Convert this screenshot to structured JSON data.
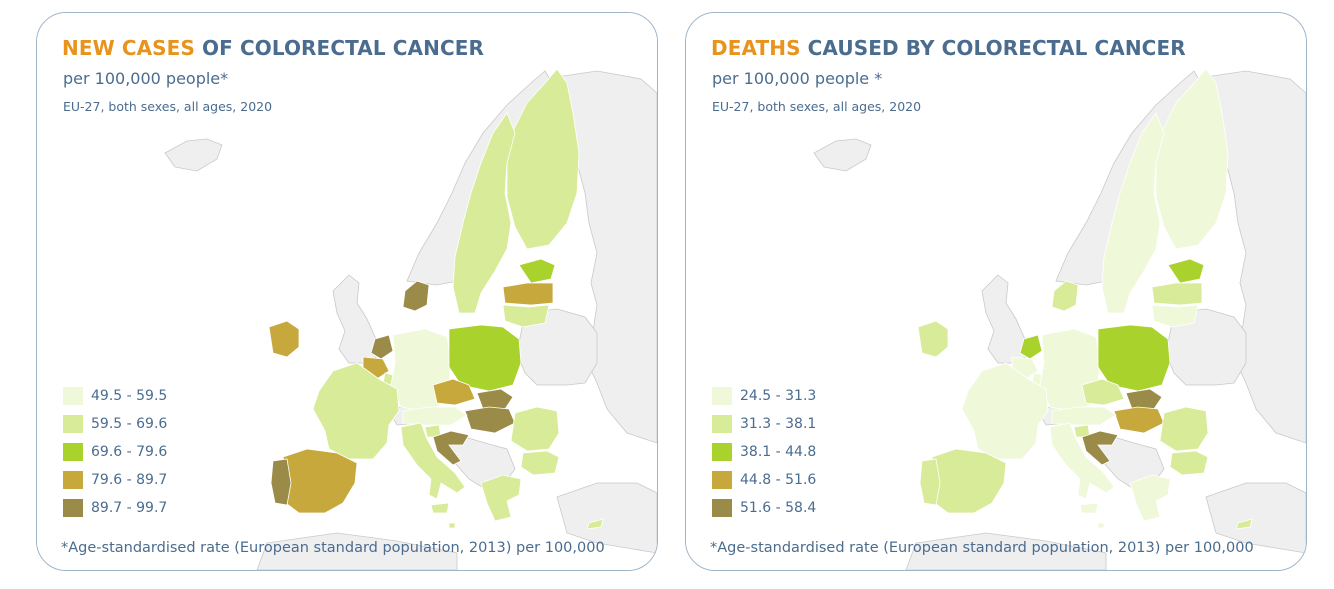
{
  "colors": {
    "non_eu": "#efeff0",
    "non_eu_stroke": "#c9c9cc",
    "classes": [
      "#eff8d9",
      "#d7eb98",
      "#a9d22c",
      "#c7a83d",
      "#9a8b48"
    ],
    "title_highlight": "#e8931c",
    "title_text": "#4a6c8f",
    "border": "#9db3c7"
  },
  "panels": [
    {
      "title_highlight": "NEW CASES",
      "title_rest": " OF COLORECTAL CANCER",
      "subtitle": "per 100,000 people*",
      "scope": "EU-27, both sexes, all ages, 2020",
      "legend": [
        {
          "label": "49.5 - 59.5",
          "class": 0
        },
        {
          "label": "59.5 - 69.6",
          "class": 1
        },
        {
          "label": "69.6 - 79.6",
          "class": 2
        },
        {
          "label": "79.6 - 89.7",
          "class": 3
        },
        {
          "label": "89.7 - 99.7",
          "class": 4
        }
      ],
      "countries": {
        "finland": 1,
        "sweden": 1,
        "estonia": 2,
        "latvia": 3,
        "lithuania": 1,
        "denmark": 4,
        "ireland": 3,
        "netherlands": 4,
        "belgium": 3,
        "luxembourg": 1,
        "germany": 0,
        "poland": 2,
        "czechia": 3,
        "slovakia": 4,
        "hungary": 4,
        "austria": 0,
        "slovenia": 1,
        "croatia": 4,
        "france": 1,
        "spain": 3,
        "portugal": 4,
        "italy": 1,
        "romania": 1,
        "bulgaria": 1,
        "greece": 1,
        "malta": 1,
        "cyprus": 1
      },
      "footnote": "*Age-standardised rate (European standard population, 2013) per 100,000"
    },
    {
      "title_highlight": "DEATHS",
      "title_rest": " CAUSED BY COLORECTAL CANCER",
      "subtitle": "per 100,000 people *",
      "scope": "EU-27, both sexes, all ages, 2020",
      "legend": [
        {
          "label": "24.5 - 31.3",
          "class": 0
        },
        {
          "label": "31.3 - 38.1",
          "class": 1
        },
        {
          "label": "38.1 - 44.8",
          "class": 2
        },
        {
          "label": "44.8 - 51.6",
          "class": 3
        },
        {
          "label": "51.6 - 58.4",
          "class": 4
        }
      ],
      "countries": {
        "finland": 0,
        "sweden": 0,
        "estonia": 2,
        "latvia": 1,
        "lithuania": 0,
        "denmark": 1,
        "ireland": 1,
        "netherlands": 2,
        "belgium": 0,
        "luxembourg": 0,
        "germany": 0,
        "poland": 2,
        "czechia": 1,
        "slovakia": 4,
        "hungary": 3,
        "austria": 0,
        "slovenia": 1,
        "croatia": 4,
        "france": 0,
        "spain": 1,
        "portugal": 1,
        "italy": 0,
        "romania": 1,
        "bulgaria": 1,
        "greece": 0,
        "malta": 0,
        "cyprus": 1
      },
      "footnote": "*Age-standardised rate (European standard population, 2013) per 100,000"
    }
  ]
}
